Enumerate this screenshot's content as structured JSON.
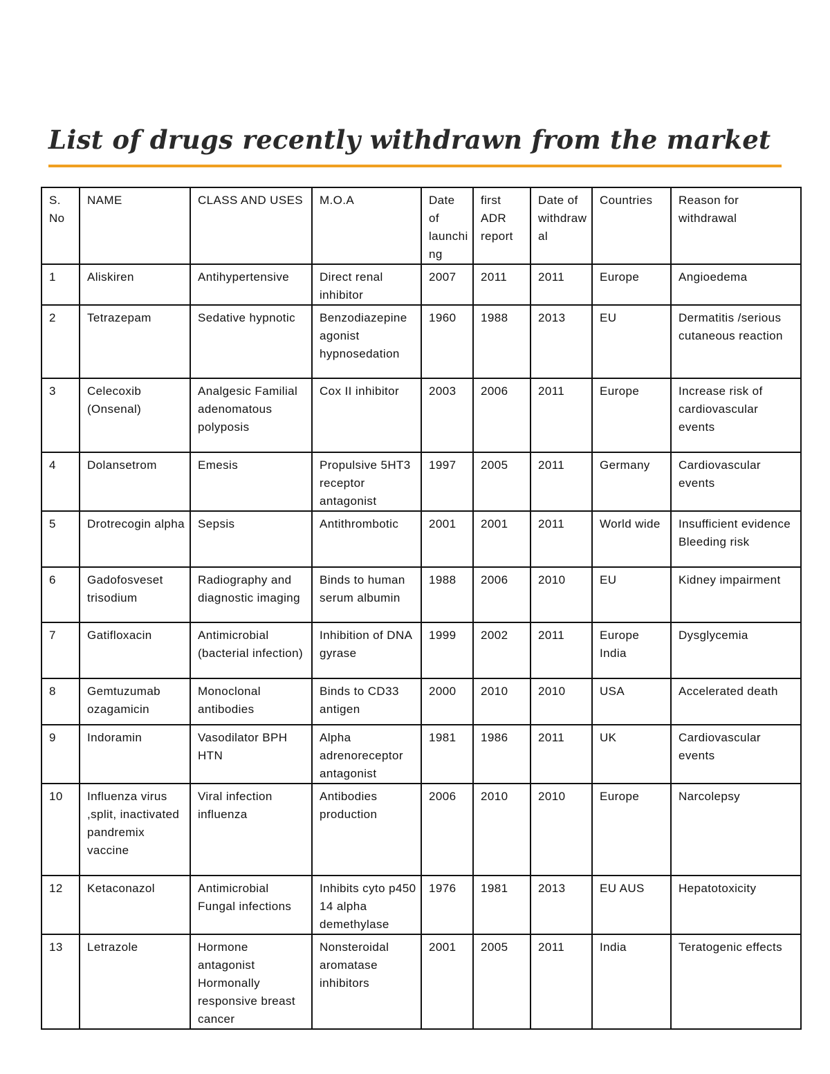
{
  "title": "List of drugs recently withdrawn from the market",
  "table": {
    "header": [
      "S. No",
      "NAME",
      "CLASS AND USES",
      "M.O.A",
      "Date of launching",
      "first ADR report",
      "Date of withdrawal",
      "Countries",
      "Reason for withdrawal"
    ],
    "rows": [
      [
        "1",
        "Aliskiren",
        "Antihypertensive",
        "Direct renal inhibitor",
        "2007",
        "2011",
        "2011",
        "Europe",
        "Angioedema"
      ],
      [
        "2",
        "Tetrazepam",
        "Sedative hypnotic",
        "Benzodiazepine agonist hypnosedation",
        "1960",
        "1988",
        "2013",
        "EU",
        "Dermatitis /serious cutaneous reaction"
      ],
      [
        "3",
        "Celecoxib (Onsenal)",
        "Analgesic Familial adenomatous polyposis",
        "Cox II inhibitor",
        "2003",
        "2006",
        "2011",
        "Europe",
        "Increase risk of cardiovascular events"
      ],
      [
        "4",
        "Dolansetrom",
        "Emesis",
        "Propulsive 5HT3 receptor antagonist",
        "1997",
        "2005",
        "2011",
        "Germany",
        "Cardiovascular events"
      ],
      [
        "5",
        "Drotrecogin alpha",
        "Sepsis",
        "Antithrombotic",
        "2001",
        "2001",
        "2011",
        "World wide",
        "Insufficient evidence Bleeding risk"
      ],
      [
        "6",
        "Gadofosveset trisodium",
        "Radiography and diagnostic imaging",
        "Binds to human serum albumin",
        "1988",
        "2006",
        "2010",
        "EU",
        "Kidney impairment"
      ],
      [
        "7",
        "Gatifloxacin",
        "Antimicrobial (bacterial infection)",
        "Inhibition of DNA gyrase",
        "1999",
        "2002",
        "2011",
        "Europe India",
        "Dysglycemia"
      ],
      [
        "8",
        "Gemtuzumab ozagamicin",
        "Monoclonal antibodies",
        "Binds to CD33 antigen",
        "2000",
        "2010",
        "2010",
        "USA",
        "Accelerated death"
      ],
      [
        "9",
        "Indoramin",
        "Vasodilator BPH HTN",
        "Alpha adrenoreceptor antagonist",
        "1981",
        "1986",
        "2011",
        "UK",
        "Cardiovascular events"
      ],
      [
        "10",
        "Influenza virus ,split, inactivated pandremix vaccine",
        "Viral infection influenza",
        "Antibodies production",
        "2006",
        "2010",
        "2010",
        "Europe",
        "Narcolepsy"
      ],
      [
        "12",
        "Ketaconazol",
        "Antimicrobial Fungal infections",
        "Inhibits cyto p450 14 alpha demethylase",
        "1976",
        "1981",
        "2013",
        "EU AUS",
        "Hepatotoxicity"
      ],
      [
        "13",
        "Letrazole",
        "Hormone antagonist Hormonally responsive breast cancer",
        "Nonsteroidal aromatase inhibitors",
        "2001",
        "2005",
        "2011",
        "India",
        "Teratogenic effects"
      ]
    ]
  }
}
